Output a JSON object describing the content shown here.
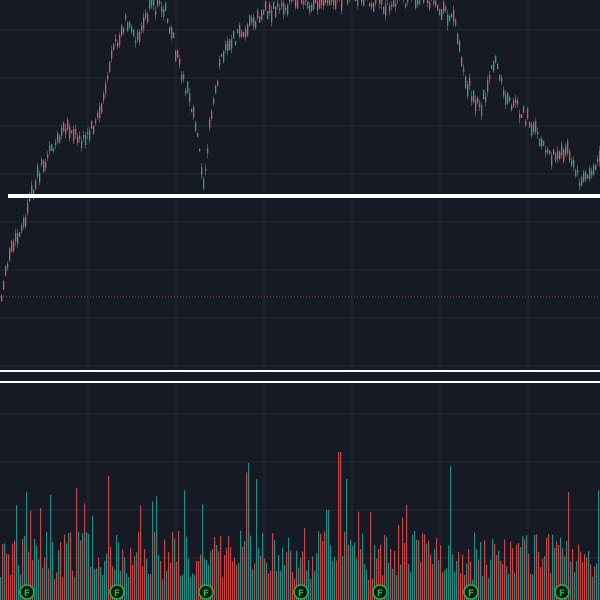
{
  "theme": {
    "background": "#161a25",
    "grid": "#232836",
    "up": "#26a69a",
    "down": "#ef5350",
    "hline": "#ffffff",
    "dotted_line": "#a63a44",
    "badge_ring": "#21b24b",
    "badge_text": "#21b24b"
  },
  "annotations": {
    "earnings_badge_label": "F",
    "earnings_badge_count": 7
  },
  "chart_data": {
    "type": "candlestick",
    "description_note": "",
    "price_seed": 1.0,
    "horizontal_levels": [
      "support-level-line",
      "range-top-line",
      "range-bottom-line"
    ],
    "volume_panel": true,
    "grid": true
  }
}
